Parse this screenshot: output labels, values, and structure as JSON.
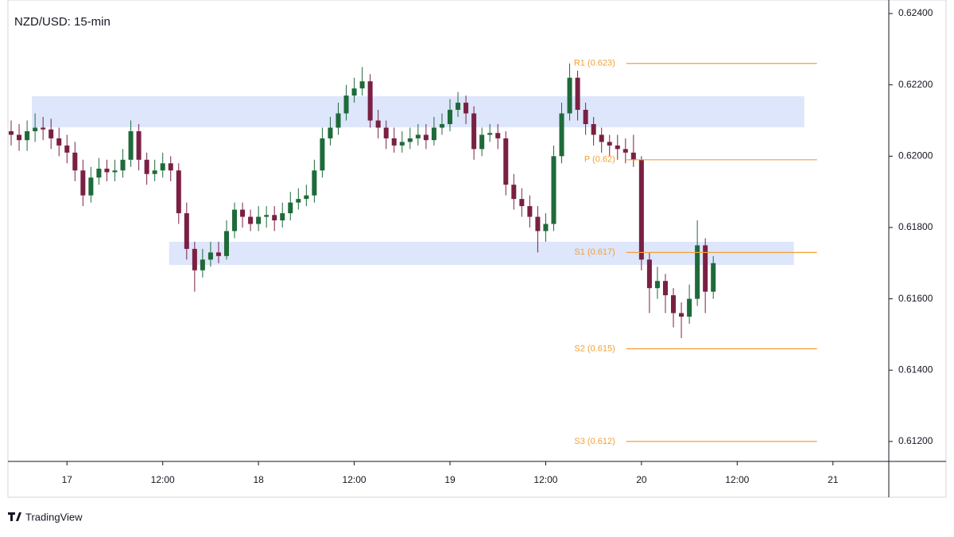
{
  "chart_data": {
    "type": "candlestick",
    "title": "NZD/USD: 15-min",
    "branding": "TradingView",
    "up_color": "#1e6b3a",
    "down_color": "#7a2043",
    "zone_color": "#dde6fb",
    "level_color": "#f5a031",
    "xlim": [
      -7.4,
      103
    ],
    "ylim": [
      0.61144,
      0.62438
    ],
    "xticks": [
      {
        "value": 0,
        "label": "17"
      },
      {
        "value": 12,
        "label": "12:00"
      },
      {
        "value": 24,
        "label": "18"
      },
      {
        "value": 36,
        "label": "12:00"
      },
      {
        "value": 48,
        "label": "19"
      },
      {
        "value": 60,
        "label": "12:00"
      },
      {
        "value": 72,
        "label": "20"
      },
      {
        "value": 84,
        "label": "12:00"
      },
      {
        "value": 96,
        "label": "21"
      }
    ],
    "yticks": [
      {
        "value": 0.612,
        "label": "0.61200"
      },
      {
        "value": 0.614,
        "label": "0.61400"
      },
      {
        "value": 0.616,
        "label": "0.61600"
      },
      {
        "value": 0.618,
        "label": "0.61800"
      },
      {
        "value": 0.62,
        "label": "0.62000"
      },
      {
        "value": 0.622,
        "label": "0.62200"
      },
      {
        "value": 0.624,
        "label": "0.62400"
      }
    ],
    "x": [
      -7,
      -6,
      -5,
      -4,
      -3,
      -2,
      -1,
      0,
      1,
      2,
      3,
      4,
      5,
      6,
      7,
      8,
      9,
      10,
      11,
      12,
      13,
      14,
      15,
      16,
      17,
      18,
      19,
      20,
      21,
      22,
      23,
      24,
      25,
      26,
      27,
      28,
      29,
      30,
      31,
      32,
      33,
      34,
      35,
      36,
      37,
      38,
      39,
      40,
      41,
      42,
      43,
      44,
      45,
      46,
      47,
      48,
      49,
      50,
      51,
      52,
      53,
      54,
      55,
      56,
      57,
      58,
      59,
      60,
      61,
      62,
      63,
      64,
      65,
      66,
      67,
      68,
      69,
      70,
      71,
      72,
      73,
      74,
      75,
      76,
      77,
      78,
      79,
      80,
      81
    ],
    "open": [
      0.6207,
      0.6206,
      0.62045,
      0.6207,
      0.6208,
      0.62075,
      0.6205,
      0.6203,
      0.6201,
      0.6196,
      0.6189,
      0.6194,
      0.61965,
      0.61955,
      0.6196,
      0.6199,
      0.6207,
      0.6199,
      0.6195,
      0.6196,
      0.6198,
      0.6196,
      0.6184,
      0.6174,
      0.6168,
      0.6171,
      0.6173,
      0.6172,
      0.6179,
      0.6185,
      0.6183,
      0.6181,
      0.6183,
      0.61835,
      0.6182,
      0.6184,
      0.6187,
      0.6188,
      0.6189,
      0.6196,
      0.6205,
      0.6208,
      0.6212,
      0.6217,
      0.6219,
      0.6221,
      0.621,
      0.6208,
      0.6205,
      0.6203,
      0.6204,
      0.6205,
      0.6206,
      0.62045,
      0.6208,
      0.6209,
      0.6213,
      0.6215,
      0.6212,
      0.6202,
      0.6206,
      0.62065,
      0.6205,
      0.6192,
      0.6188,
      0.6186,
      0.6183,
      0.6179,
      0.6181,
      0.62,
      0.6212,
      0.6222,
      0.6213,
      0.6209,
      0.6206,
      0.6204,
      0.6203,
      0.6202,
      0.6201,
      0.6199,
      0.6171,
      0.6163,
      0.6165,
      0.6161,
      0.6156,
      0.6155,
      0.616,
      0.6175,
      0.6162
    ],
    "high": [
      0.621,
      0.6209,
      0.621,
      0.6212,
      0.6211,
      0.62105,
      0.6208,
      0.6206,
      0.6204,
      0.6199,
      0.6197,
      0.61995,
      0.6199,
      0.6199,
      0.6202,
      0.621,
      0.6209,
      0.6201,
      0.6199,
      0.6201,
      0.62,
      0.6198,
      0.6187,
      0.6176,
      0.6174,
      0.6176,
      0.6176,
      0.6182,
      0.6187,
      0.6187,
      0.6185,
      0.6186,
      0.6186,
      0.6186,
      0.6187,
      0.619,
      0.6191,
      0.6192,
      0.6199,
      0.6208,
      0.6211,
      0.6215,
      0.622,
      0.6222,
      0.6225,
      0.6223,
      0.6213,
      0.621,
      0.6208,
      0.6207,
      0.6208,
      0.6209,
      0.6209,
      0.6211,
      0.6212,
      0.6216,
      0.6218,
      0.6217,
      0.6214,
      0.6208,
      0.6209,
      0.6209,
      0.6207,
      0.6195,
      0.6191,
      0.6189,
      0.6186,
      0.6184,
      0.6203,
      0.6215,
      0.6226,
      0.6224,
      0.6215,
      0.6211,
      0.6208,
      0.6206,
      0.6206,
      0.6205,
      0.6206,
      0.62,
      0.6173,
      0.6169,
      0.6167,
      0.6163,
      0.6159,
      0.6164,
      0.6182,
      0.6177,
      0.6172
    ],
    "low": [
      0.6203,
      0.62015,
      0.62015,
      0.6204,
      0.62045,
      0.6202,
      0.62,
      0.6198,
      0.6193,
      0.6186,
      0.6187,
      0.6192,
      0.6193,
      0.6193,
      0.6194,
      0.6197,
      0.6196,
      0.6192,
      0.6193,
      0.6194,
      0.6193,
      0.6181,
      0.6171,
      0.6162,
      0.6166,
      0.6169,
      0.617,
      0.6171,
      0.6177,
      0.618,
      0.6179,
      0.6179,
      0.618,
      0.6179,
      0.618,
      0.6182,
      0.6185,
      0.6186,
      0.6187,
      0.6194,
      0.6203,
      0.6206,
      0.621,
      0.6215,
      0.6217,
      0.6208,
      0.6205,
      0.6202,
      0.6201,
      0.6201,
      0.6202,
      0.6203,
      0.6202,
      0.6203,
      0.6206,
      0.6207,
      0.6211,
      0.6209,
      0.6199,
      0.62,
      0.6204,
      0.6202,
      0.6189,
      0.6185,
      0.6183,
      0.618,
      0.6173,
      0.6176,
      0.6179,
      0.6198,
      0.621,
      0.621,
      0.6206,
      0.6203,
      0.6201,
      0.62,
      0.6199,
      0.6198,
      0.6197,
      0.6168,
      0.6156,
      0.616,
      0.6156,
      0.6152,
      0.6149,
      0.6153,
      0.6158,
      0.6156,
      0.616
    ],
    "close": [
      0.6206,
      0.62045,
      0.6207,
      0.6208,
      0.62075,
      0.6205,
      0.6203,
      0.6201,
      0.6196,
      0.6189,
      0.6194,
      0.61965,
      0.61955,
      0.6196,
      0.6199,
      0.6207,
      0.6199,
      0.6195,
      0.6196,
      0.6198,
      0.6196,
      0.6184,
      0.6174,
      0.6168,
      0.6171,
      0.6173,
      0.6172,
      0.6179,
      0.6185,
      0.6183,
      0.6181,
      0.6183,
      0.61835,
      0.6182,
      0.6184,
      0.6187,
      0.6188,
      0.6189,
      0.6196,
      0.6205,
      0.6208,
      0.6212,
      0.6217,
      0.6219,
      0.6221,
      0.621,
      0.6208,
      0.6205,
      0.6203,
      0.6204,
      0.6205,
      0.6206,
      0.62045,
      0.6208,
      0.6209,
      0.6213,
      0.6215,
      0.6212,
      0.6202,
      0.6206,
      0.62065,
      0.6205,
      0.6192,
      0.6188,
      0.6186,
      0.6183,
      0.6179,
      0.6181,
      0.62,
      0.6212,
      0.6222,
      0.6213,
      0.6209,
      0.6206,
      0.6204,
      0.6203,
      0.6202,
      0.6201,
      0.6199,
      0.6171,
      0.6163,
      0.6165,
      0.6161,
      0.6156,
      0.6155,
      0.616,
      0.6175,
      0.6162,
      0.617
    ],
    "zones": [
      {
        "x": [
          -4.4,
          92.4
        ],
        "y": [
          0.62081,
          0.62168
        ]
      },
      {
        "x": [
          12.8,
          91.1
        ],
        "y": [
          0.61695,
          0.6176
        ]
      }
    ],
    "level_x": [
      70.1,
      94
    ],
    "levels": [
      {
        "label": "R1 (0.623)",
        "value": 0.6226
      },
      {
        "label": "P (0.62)",
        "value": 0.6199
      },
      {
        "label": "S1 (0.617)",
        "value": 0.6173
      },
      {
        "label": "S2 (0.615)",
        "value": 0.6146
      },
      {
        "label": "S3 (0.612)",
        "value": 0.612
      }
    ]
  }
}
